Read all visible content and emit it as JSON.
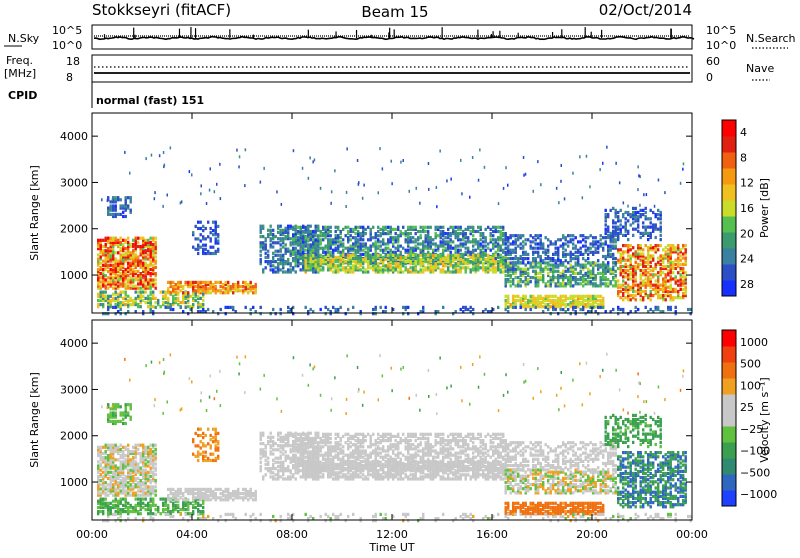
{
  "header": {
    "station": "Stokkseyri (fitACF)",
    "beam": "Beam 15",
    "date": "02/Oct/2014"
  },
  "meta_strip": {
    "nsky_label": "N.Sky",
    "nsky_ticks": [
      "10^5",
      "10^0"
    ],
    "nsearch_label": "N.Search",
    "nsearch_ticks": [
      "10^5",
      "10^0"
    ],
    "freq_label": "Freq.",
    "freq_unit": "[MHz]",
    "freq_ticks": [
      "18",
      "8"
    ],
    "nave_label": "Nave",
    "nave_ticks": [
      "60",
      "0"
    ],
    "cpid_label": "CPID",
    "cpid_value": "normal (fast) 151"
  },
  "chart_data": [
    {
      "type": "heatmap",
      "quantity": "Power",
      "ylabel": "Slant Range [km]",
      "ylim": [
        180,
        4500
      ],
      "yticks": [
        1000,
        2000,
        3000,
        4000
      ],
      "xlim": [
        0,
        24
      ],
      "xticks": [
        "00:00",
        "04:00",
        "08:00",
        "12:00",
        "16:00",
        "20:00",
        "00:00"
      ],
      "colorbar": {
        "label": "Power [dB]",
        "ticks": [
          "4",
          "8",
          "12",
          "16",
          "20",
          "24",
          "28"
        ],
        "colors": [
          "#1630ff",
          "#2a4fc6",
          "#3a80a0",
          "#3b9a6e",
          "#55c050",
          "#c8dc28",
          "#f0c020",
          "#f59a10",
          "#f06010",
          "#e02010",
          "#ff0000"
        ]
      }
    },
    {
      "type": "heatmap",
      "quantity": "Velocity",
      "ylabel": "Slant Range [km]",
      "ylim": [
        180,
        4500
      ],
      "yticks": [
        1000,
        2000,
        3000,
        4000
      ],
      "xlim": [
        0,
        24
      ],
      "xticks": [
        "00:00",
        "04:00",
        "08:00",
        "12:00",
        "16:00",
        "20:00",
        "00:00"
      ],
      "xlabel": "Time UT",
      "colorbar": {
        "label": "Velocity [m s⁻¹]",
        "ticks": [
          "1000",
          "500",
          "100",
          "25",
          "−25",
          "−100",
          "−500",
          "−1000"
        ],
        "colors": [
          "#2040ff",
          "#2f66c0",
          "#2f8a70",
          "#3aa050",
          "#60c040",
          "#c8c8c8",
          "#c8c8c8",
          "#f0a020",
          "#f07010",
          "#f04010",
          "#ff0000"
        ]
      }
    }
  ]
}
